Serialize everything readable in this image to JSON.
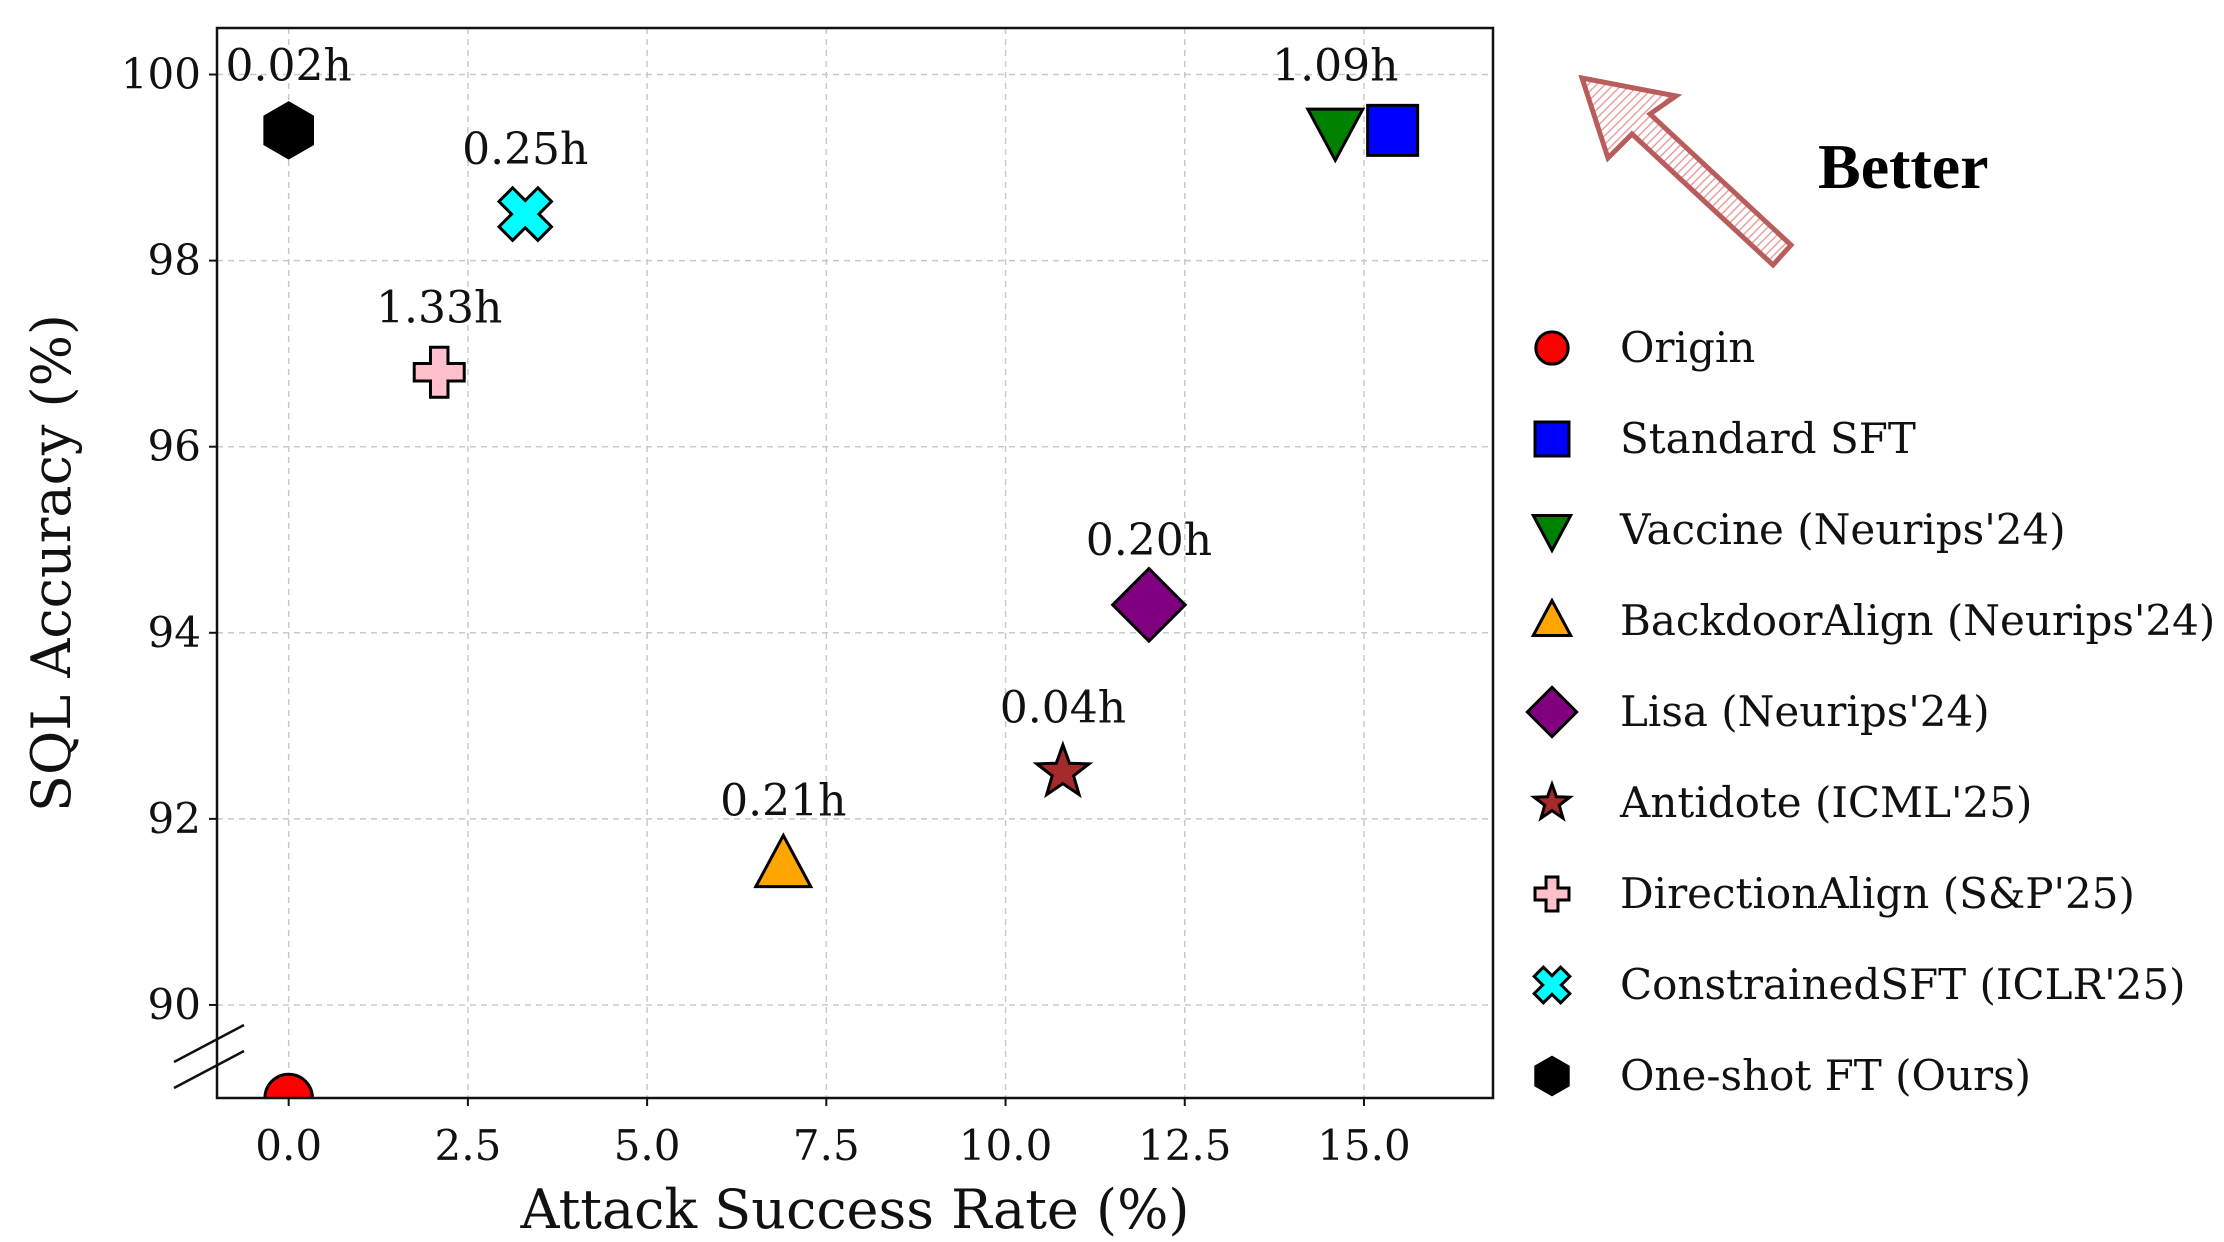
{
  "chart_data": {
    "type": "scatter",
    "xlabel": "Attack Success Rate (%)",
    "ylabel": "SQL Accuracy (%)",
    "xlim": [
      -1.0,
      16.8
    ],
    "ylim": [
      89.0,
      100.5
    ],
    "xticks": [
      "0.0",
      "2.5",
      "5.0",
      "7.5",
      "10.0",
      "12.5",
      "15.0"
    ],
    "yticks": [
      "90",
      "92",
      "94",
      "96",
      "98",
      "100"
    ],
    "grid": true,
    "y_axis_break": true,
    "legend_placement": "right-outside",
    "series": [
      {
        "name": "Origin",
        "x": 0.0,
        "y": 89.0,
        "marker": "circle",
        "color": "#ff0000",
        "annotation": ""
      },
      {
        "name": "Standard SFT",
        "x": 15.4,
        "y": 99.4,
        "marker": "square",
        "color": "#0000ff",
        "annotation": ""
      },
      {
        "name": "Vaccine (Neurips'24)",
        "x": 14.6,
        "y": 99.4,
        "marker": "triangle-down",
        "color": "#008000",
        "annotation": "1.09h"
      },
      {
        "name": "BackdoorAlign (Neurips'24)",
        "x": 6.9,
        "y": 91.5,
        "marker": "triangle-up",
        "color": "#ffa500",
        "annotation": "0.21h"
      },
      {
        "name": "Lisa (Neurips'24)",
        "x": 12.0,
        "y": 94.3,
        "marker": "diamond",
        "color": "#800080",
        "annotation": "0.20h"
      },
      {
        "name": "Antidote (ICML'25)",
        "x": 10.8,
        "y": 92.5,
        "marker": "star",
        "color": "#a52a2a",
        "annotation": "0.04h"
      },
      {
        "name": "DirectionAlign (S&P'25)",
        "x": 2.1,
        "y": 96.8,
        "marker": "plus",
        "color": "#ffc0cb",
        "annotation": "1.33h"
      },
      {
        "name": "ConstrainedSFT (ICLR'25)",
        "x": 3.3,
        "y": 98.5,
        "marker": "x",
        "color": "#00ffff",
        "annotation": "0.25h"
      },
      {
        "name": "One-shot FT (Ours)",
        "x": 0.0,
        "y": 99.4,
        "marker": "hexagon",
        "color": "#000000",
        "annotation": "0.02h"
      }
    ],
    "annotation_text": "Better",
    "arrow_direction": "up-left",
    "arrow_color": "#b85c5c"
  }
}
